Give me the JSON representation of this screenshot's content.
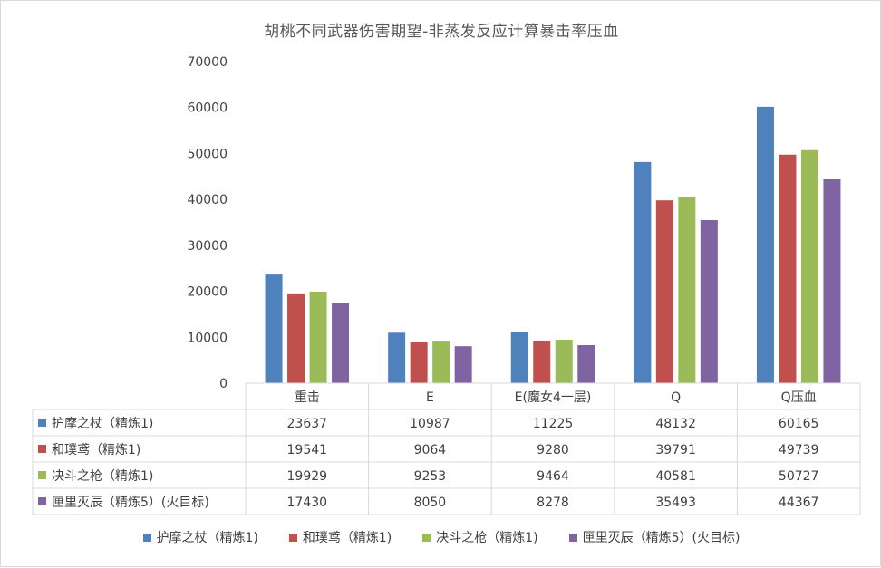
{
  "chart_data": {
    "type": "bar",
    "title": "胡桃不同武器伤害期望-非蒸发反应计算暴击率压血",
    "categories": [
      "重击",
      "E",
      "E(魔女4一层)",
      "Q",
      "Q压血"
    ],
    "series": [
      {
        "name": "护摩之杖（精炼1)",
        "color": "#4f81bd",
        "values": [
          23637,
          10987,
          11225,
          48132,
          60165
        ]
      },
      {
        "name": "和璞鸢（精炼1)",
        "color": "#c0504d",
        "values": [
          19541,
          9064,
          9280,
          39791,
          49739
        ]
      },
      {
        "name": "决斗之枪（精炼1)",
        "color": "#9bbb59",
        "values": [
          19929,
          9253,
          9464,
          40581,
          50727
        ]
      },
      {
        "name": "匣里灭辰（精炼5）(火目标)",
        "color": "#8064a2",
        "values": [
          17430,
          8050,
          8278,
          35493,
          44367
        ]
      }
    ],
    "y_ticks": [
      "0",
      "10000",
      "20000",
      "30000",
      "40000",
      "50000",
      "60000",
      "70000"
    ],
    "ylim": [
      0,
      70000
    ],
    "grid": false,
    "data_table": true,
    "legend_position": "bottom"
  }
}
